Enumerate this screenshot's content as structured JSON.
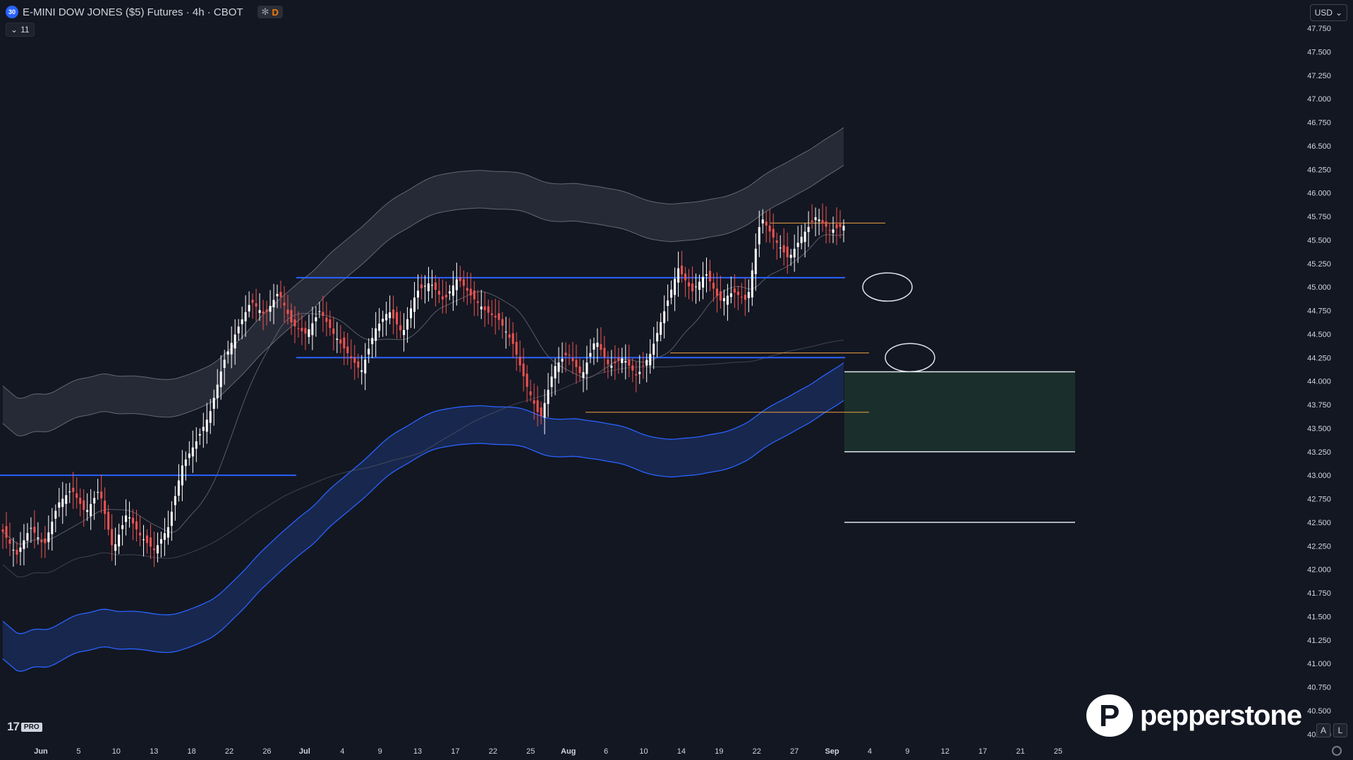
{
  "header": {
    "symbol_badge": "30",
    "title": "E-MINI DOW JONES ($5) Futures · 4h · CBOT",
    "status_snow": "✻",
    "status_d": "D",
    "indicators_count": "11",
    "indicators_chevron": "⌄"
  },
  "currency": {
    "label": "USD",
    "chevron": "⌄"
  },
  "branding": {
    "tv_logo": "17",
    "tv_pro": "PRO",
    "broker": "pepperstone"
  },
  "corner_buttons": {
    "auto": "A",
    "log": "L"
  },
  "colors": {
    "background": "#131722",
    "up_candle": "#ffffff",
    "down_candle": "#ef5350",
    "level_blue": "#2962ff",
    "level_orange": "#f0a040",
    "upper_band": "#2a2e39",
    "lower_band": "#1a2a55",
    "target_zone": "#1e3a2f"
  },
  "chart_data": {
    "type": "candlestick",
    "y_ticks": [
      "47.750",
      "47.500",
      "47.250",
      "47.000",
      "46.750",
      "46.500",
      "46.250",
      "46.000",
      "45.750",
      "45.500",
      "45.250",
      "45.000",
      "44.750",
      "44.500",
      "44.250",
      "44.000",
      "43.750",
      "43.500",
      "43.250",
      "43.000",
      "42.750",
      "42.500",
      "42.250",
      "42.000",
      "41.750",
      "41.500",
      "41.250",
      "41.000",
      "40.750",
      "40.500",
      "40.250"
    ],
    "x_ticks": [
      "Jun",
      "5",
      "10",
      "13",
      "18",
      "22",
      "26",
      "Jul",
      "4",
      "9",
      "13",
      "17",
      "22",
      "25",
      "Aug",
      "6",
      "10",
      "14",
      "19",
      "22",
      "27",
      "Sep",
      "4",
      "9",
      "12",
      "17",
      "21",
      "25"
    ],
    "x_tick_bold": [
      "Jun",
      "Jul",
      "Aug",
      "Sep"
    ],
    "ylim": [
      40.2,
      47.9
    ],
    "price_path": [
      [
        0,
        42.4
      ],
      [
        10,
        42.15
      ],
      [
        20,
        42.45
      ],
      [
        30,
        42.25
      ],
      [
        40,
        42.7
      ],
      [
        50,
        42.85
      ],
      [
        60,
        42.6
      ],
      [
        70,
        42.85
      ],
      [
        80,
        42.2
      ],
      [
        90,
        42.6
      ],
      [
        100,
        42.35
      ],
      [
        110,
        42.2
      ],
      [
        120,
        42.45
      ],
      [
        130,
        43.1
      ],
      [
        140,
        43.35
      ],
      [
        150,
        43.65
      ],
      [
        160,
        44.2
      ],
      [
        170,
        44.55
      ],
      [
        180,
        44.85
      ],
      [
        190,
        44.7
      ],
      [
        200,
        44.95
      ],
      [
        210,
        44.6
      ],
      [
        220,
        44.5
      ],
      [
        230,
        44.75
      ],
      [
        240,
        44.5
      ],
      [
        250,
        44.3
      ],
      [
        260,
        44.1
      ],
      [
        270,
        44.55
      ],
      [
        280,
        44.75
      ],
      [
        290,
        44.5
      ],
      [
        300,
        44.95
      ],
      [
        310,
        45.05
      ],
      [
        320,
        44.85
      ],
      [
        330,
        45.1
      ],
      [
        340,
        44.9
      ],
      [
        350,
        44.75
      ],
      [
        360,
        44.65
      ],
      [
        370,
        44.4
      ],
      [
        380,
        43.95
      ],
      [
        390,
        43.6
      ],
      [
        400,
        44.15
      ],
      [
        410,
        44.3
      ],
      [
        420,
        44.05
      ],
      [
        430,
        44.45
      ],
      [
        440,
        44.15
      ],
      [
        450,
        44.25
      ],
      [
        460,
        44.05
      ],
      [
        470,
        44.3
      ],
      [
        480,
        44.75
      ],
      [
        490,
        45.2
      ],
      [
        500,
        44.95
      ],
      [
        510,
        45.15
      ],
      [
        520,
        44.85
      ],
      [
        530,
        44.95
      ],
      [
        540,
        44.85
      ],
      [
        550,
        45.75
      ],
      [
        560,
        45.5
      ],
      [
        570,
        45.3
      ],
      [
        580,
        45.55
      ],
      [
        590,
        45.75
      ],
      [
        600,
        45.6
      ],
      [
        610,
        45.65
      ]
    ],
    "levels": {
      "blue": [
        45.1,
        44.25,
        43.0
      ],
      "orange": [
        45.68,
        44.3,
        43.67
      ],
      "target_zone": [
        43.25,
        44.1
      ],
      "white_lines": [
        44.1,
        43.25,
        42.5
      ]
    },
    "annotations": [
      "ellipse near 45.0",
      "ellipse near 44.25"
    ]
  }
}
